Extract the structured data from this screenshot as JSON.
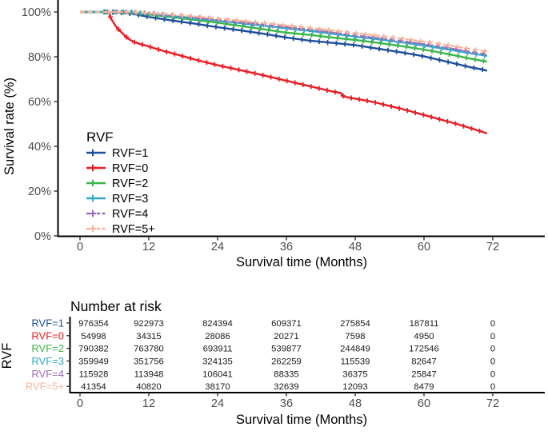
{
  "chart_data": {
    "type": "line",
    "subtype": "kaplan-meier-survival-curves",
    "title": "",
    "xlabel": "Survival time (Months)",
    "ylabel": "Survival rate (%)",
    "xlim": [
      0,
      81
    ],
    "ylim": [
      0,
      100
    ],
    "grid": false,
    "x_ticks": [
      0,
      12,
      24,
      36,
      48,
      60,
      72
    ],
    "x_tick_labels": [
      "0",
      "12",
      "24",
      "36",
      "48",
      "60",
      "72"
    ],
    "y_ticks": [
      {
        "value": 0,
        "label": "0%"
      },
      {
        "value": 20,
        "label": "20%"
      },
      {
        "value": 40,
        "label": "40%"
      },
      {
        "value": 60,
        "label": "60%"
      },
      {
        "value": 80,
        "label": "80%"
      },
      {
        "value": 100,
        "label": "100%"
      }
    ],
    "legend_title": "RVF",
    "legend_position": "inside-left",
    "legend_order": [
      "RVF=1",
      "RVF=0",
      "RVF=2",
      "RVF=3",
      "RVF=4",
      "RVF=5+"
    ],
    "marker": "plus-censor-tick",
    "series": [
      {
        "name": "RVF=1",
        "color": "#1e4e9b",
        "dash": "solid",
        "width": 2.4,
        "marker_start": 4.2,
        "marker_step": 1.5,
        "points": [
          [
            0,
            100
          ],
          [
            5,
            100
          ],
          [
            8,
            99.6
          ],
          [
            10,
            98.8
          ],
          [
            12,
            97.8
          ],
          [
            16,
            96.2
          ],
          [
            20,
            94.8
          ],
          [
            24,
            93.2
          ],
          [
            28,
            91.8
          ],
          [
            32,
            90.3
          ],
          [
            36,
            88.6
          ],
          [
            40,
            87.2
          ],
          [
            44,
            86.2
          ],
          [
            48,
            85.2
          ],
          [
            52,
            83.6
          ],
          [
            56,
            82
          ],
          [
            60,
            80.2
          ],
          [
            63,
            78.4
          ],
          [
            66,
            76.6
          ],
          [
            68,
            75.4
          ],
          [
            70,
            74.4
          ],
          [
            71,
            73.8
          ]
        ]
      },
      {
        "name": "RVF=0",
        "color": "#ea1d25",
        "dash": "solid",
        "width": 2.4,
        "marker_start": 5.3,
        "marker_step": 1.4,
        "points": [
          [
            0,
            100
          ],
          [
            5,
            100
          ],
          [
            5.4,
            97
          ],
          [
            5.8,
            95.5
          ],
          [
            6.2,
            93.8
          ],
          [
            6.8,
            92
          ],
          [
            7.4,
            90.5
          ],
          [
            8,
            89
          ],
          [
            8.6,
            87.8
          ],
          [
            9.4,
            86.6
          ],
          [
            10.4,
            85.8
          ],
          [
            11.2,
            85.2
          ],
          [
            12,
            84.6
          ],
          [
            14,
            83
          ],
          [
            16,
            81.6
          ],
          [
            18,
            80.2
          ],
          [
            20,
            78.8
          ],
          [
            22,
            77.5
          ],
          [
            24,
            76.2
          ],
          [
            26,
            75.1
          ],
          [
            28,
            74
          ],
          [
            30,
            72.9
          ],
          [
            32,
            71.7
          ],
          [
            34,
            70.5
          ],
          [
            36,
            69.3
          ],
          [
            38,
            68.1
          ],
          [
            40,
            66.9
          ],
          [
            42,
            65.7
          ],
          [
            44,
            64.5
          ],
          [
            45.5,
            63.8
          ],
          [
            46,
            62.2
          ],
          [
            48,
            61.3
          ],
          [
            50,
            60.4
          ],
          [
            52,
            59.3
          ],
          [
            54,
            58
          ],
          [
            56,
            56.8
          ],
          [
            58,
            55.4
          ],
          [
            60,
            54
          ],
          [
            62,
            52.6
          ],
          [
            64,
            51.2
          ],
          [
            66,
            49.8
          ],
          [
            68,
            48.2
          ],
          [
            70,
            46.6
          ],
          [
            71,
            45.8
          ]
        ]
      },
      {
        "name": "RVF=2",
        "color": "#3db54a",
        "dash": "solid",
        "width": 2.4,
        "marker_start": 4.4,
        "marker_step": 1.5,
        "points": [
          [
            0,
            100
          ],
          [
            6,
            100
          ],
          [
            9,
            99.8
          ],
          [
            12,
            98.9
          ],
          [
            16,
            97.7
          ],
          [
            20,
            96.5
          ],
          [
            24,
            95.2
          ],
          [
            28,
            93.8
          ],
          [
            32,
            92.3
          ],
          [
            36,
            90.8
          ],
          [
            40,
            89.8
          ],
          [
            44,
            88.6
          ],
          [
            48,
            87.5
          ],
          [
            52,
            86.2
          ],
          [
            56,
            84.8
          ],
          [
            60,
            83.2
          ],
          [
            63,
            81.8
          ],
          [
            66,
            80.3
          ],
          [
            68,
            79.2
          ],
          [
            70,
            78.3
          ],
          [
            71,
            77.9
          ]
        ]
      },
      {
        "name": "RVF=3",
        "color": "#2ea8c6",
        "dash": "solid",
        "width": 2.2,
        "marker_start": 4.6,
        "marker_step": 1.5,
        "points": [
          [
            0,
            100
          ],
          [
            6,
            100
          ],
          [
            9,
            99.9
          ],
          [
            12,
            99.2
          ],
          [
            16,
            98.2
          ],
          [
            20,
            97.2
          ],
          [
            24,
            96.1
          ],
          [
            28,
            95
          ],
          [
            32,
            93.9
          ],
          [
            36,
            92.7
          ],
          [
            40,
            91.6
          ],
          [
            44,
            90.3
          ],
          [
            48,
            89
          ],
          [
            52,
            87.8
          ],
          [
            56,
            86.5
          ],
          [
            60,
            85
          ],
          [
            63,
            83.8
          ],
          [
            66,
            82.5
          ],
          [
            68,
            81.6
          ],
          [
            70,
            80.8
          ],
          [
            71,
            80.4
          ]
        ]
      },
      {
        "name": "RVF=4",
        "color": "#9b6db5",
        "dash": "dashed",
        "width": 1.8,
        "marker_start": 4.8,
        "marker_step": 1.6,
        "points": [
          [
            0,
            100
          ],
          [
            6,
            100
          ],
          [
            9,
            99.9
          ],
          [
            12,
            99.4
          ],
          [
            16,
            98.5
          ],
          [
            20,
            97.6
          ],
          [
            24,
            96.5
          ],
          [
            28,
            95.4
          ],
          [
            32,
            94.3
          ],
          [
            36,
            93.2
          ],
          [
            40,
            92.1
          ],
          [
            44,
            90.9
          ],
          [
            48,
            89.6
          ],
          [
            52,
            88.4
          ],
          [
            56,
            87.1
          ],
          [
            60,
            85.7
          ],
          [
            63,
            84.5
          ],
          [
            66,
            83.2
          ],
          [
            68,
            82.3
          ],
          [
            70,
            81.5
          ],
          [
            71,
            81.1
          ]
        ]
      },
      {
        "name": "RVF=5+",
        "color": "#f8b39b",
        "dash": "dashed",
        "width": 2.2,
        "marker_start": 5.0,
        "marker_step": 1.6,
        "points": [
          [
            0,
            100
          ],
          [
            6,
            100
          ],
          [
            9,
            99.9
          ],
          [
            12,
            99.5
          ],
          [
            16,
            98.8
          ],
          [
            20,
            98
          ],
          [
            24,
            97.1
          ],
          [
            28,
            96.1
          ],
          [
            32,
            95.1
          ],
          [
            36,
            94
          ],
          [
            40,
            93
          ],
          [
            44,
            91.8
          ],
          [
            48,
            90.6
          ],
          [
            52,
            89.4
          ],
          [
            56,
            88.2
          ],
          [
            60,
            86.8
          ],
          [
            63,
            85.7
          ],
          [
            66,
            84.4
          ],
          [
            68,
            83.5
          ],
          [
            70,
            82.7
          ],
          [
            71,
            82.3
          ]
        ]
      }
    ],
    "risk_table": {
      "title": "Number at risk",
      "ylabel": "RVF",
      "xlabel": "Survival time (Months)",
      "columns": [
        0,
        12,
        24,
        36,
        48,
        60,
        72
      ],
      "column_labels": [
        "0",
        "12",
        "24",
        "36",
        "48",
        "60",
        "72"
      ],
      "rows": [
        {
          "label": "RVF=1",
          "color": "#1e4e9b",
          "values": [
            976354,
            922973,
            824394,
            609371,
            275854,
            187811,
            0
          ]
        },
        {
          "label": "RVF=0",
          "color": "#ea1d25",
          "values": [
            54998,
            34315,
            28086,
            20271,
            7598,
            4950,
            0
          ]
        },
        {
          "label": "RVF=2",
          "color": "#3db54a",
          "values": [
            790382,
            763780,
            693911,
            539877,
            244849,
            172546,
            0
          ]
        },
        {
          "label": "RVF=3",
          "color": "#2ea8c6",
          "values": [
            359949,
            351756,
            324135,
            262259,
            115539,
            82647,
            0
          ]
        },
        {
          "label": "RVF=4",
          "color": "#9b6db5",
          "values": [
            115928,
            113948,
            106041,
            88335,
            36375,
            25847,
            0
          ]
        },
        {
          "label": "RVF=5+",
          "color": "#f8b39b",
          "values": [
            41354,
            40820,
            38170,
            32639,
            12093,
            8479,
            0
          ]
        }
      ]
    },
    "colors": {
      "axis_line": "#000000",
      "tick_mark": "#333333",
      "tick_label": "#4d4d4d",
      "axis_title": "#000000",
      "table_number": "#1a1a1a",
      "background": "#ffffff"
    }
  }
}
